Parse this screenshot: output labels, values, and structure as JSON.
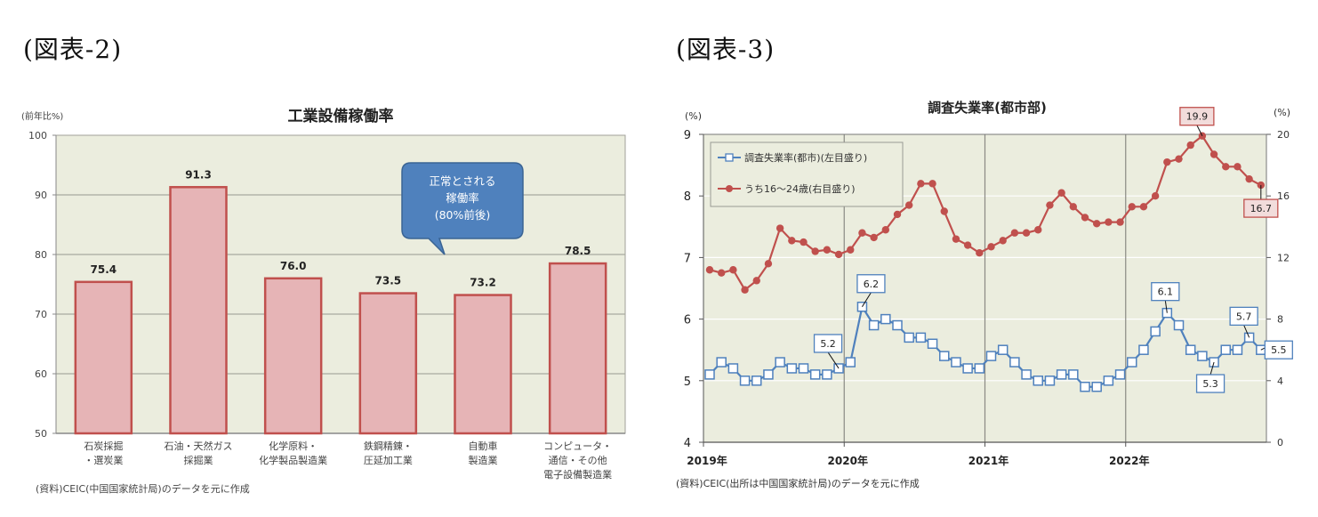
{
  "figures": {
    "fig2": {
      "label": "(図表-2)"
    },
    "fig3": {
      "label": "(図表-3)"
    }
  },
  "chart_data": [
    {
      "type": "bar",
      "title": "工業設備稼働率",
      "ylabel": "(前年比%)",
      "xlabel": "",
      "ylim": [
        50,
        100
      ],
      "yticks": [
        50,
        60,
        70,
        80,
        90,
        100
      ],
      "grid": true,
      "categories": [
        [
          "石炭採掘",
          "・選炭業"
        ],
        [
          "石油・天然ガス",
          "採掘業"
        ],
        [
          "化学原料・",
          "化学製品製造業"
        ],
        [
          "鉄鋼精錬・",
          "圧延加工業"
        ],
        [
          "自動車",
          "製造業"
        ],
        [
          "コンピュータ・",
          "通信・その他",
          "電子設備製造業"
        ]
      ],
      "values": [
        75.4,
        91.3,
        76.0,
        73.5,
        73.2,
        78.5
      ],
      "value_labels": [
        "75.4",
        "91.3",
        "76.0",
        "73.5",
        "73.2",
        "78.5"
      ],
      "annotation": {
        "lines": [
          "正常とされる",
          "稼働率",
          "(80%前後)"
        ],
        "points_to_y": 80
      },
      "source": "(資料)CEIC(中国国家統計局)のデータを元に作成",
      "colors": {
        "bar_fill": "#e6b4b6",
        "bar_border": "#c0504d",
        "plot_bg": "#ebedde",
        "callout": "#4f81bd"
      }
    },
    {
      "type": "line",
      "title": "調査失業率(都市部)",
      "ylabel_left": "(%)",
      "ylabel_right": "(%)",
      "ylim_left": [
        4,
        9
      ],
      "yticks_left": [
        4,
        5,
        6,
        7,
        8,
        9
      ],
      "ylim_right": [
        0,
        20
      ],
      "yticks_right": [
        0,
        4,
        8,
        12,
        16,
        20
      ],
      "x_tick_labels": [
        "2019年",
        "2020年",
        "2021年",
        "2022年"
      ],
      "x_start": "2019-01",
      "x_end": "2022-12",
      "grid": true,
      "legend_position": "upper-left",
      "series": [
        {
          "name": "調査失業率(都市)(左目盛り)",
          "axis": "left",
          "color": "#4f81bd",
          "marker": "square-open",
          "values": [
            5.1,
            5.3,
            5.2,
            5.0,
            5.0,
            5.1,
            5.3,
            5.2,
            5.2,
            5.1,
            5.1,
            5.2,
            5.3,
            6.2,
            5.9,
            6.0,
            5.9,
            5.7,
            5.7,
            5.6,
            5.4,
            5.3,
            5.2,
            5.2,
            5.4,
            5.5,
            5.3,
            5.1,
            5.0,
            5.0,
            5.1,
            5.1,
            4.9,
            4.9,
            5.0,
            5.1,
            5.3,
            5.5,
            5.8,
            6.1,
            5.9,
            5.5,
            5.4,
            5.3,
            5.5,
            5.5,
            5.7,
            5.5
          ],
          "data_labels": [
            {
              "index": 11,
              "text": "5.2",
              "dx": -12,
              "dy": -28
            },
            {
              "index": 13,
              "text": "6.2",
              "dx": 10,
              "dy": -26
            },
            {
              "index": 39,
              "text": "6.1",
              "dx": -2,
              "dy": -24
            },
            {
              "index": 43,
              "text": "5.3",
              "dx": -4,
              "dy": 24
            },
            {
              "index": 46,
              "text": "5.7",
              "dx": -6,
              "dy": -24
            },
            {
              "index": 47,
              "text": "5.5",
              "dx": 20,
              "dy": 0
            }
          ]
        },
        {
          "name": "うち16〜24歳(右目盛り)",
          "axis": "right",
          "color": "#c0504d",
          "marker": "circle-filled",
          "values": [
            11.2,
            11.0,
            11.2,
            9.9,
            10.5,
            11.6,
            13.9,
            13.1,
            13.0,
            12.4,
            12.5,
            12.2,
            12.5,
            13.6,
            13.3,
            13.8,
            14.8,
            15.4,
            16.8,
            16.8,
            15.0,
            13.2,
            12.8,
            12.3,
            12.7,
            13.1,
            13.6,
            13.6,
            13.8,
            15.4,
            16.2,
            15.3,
            14.6,
            14.2,
            14.3,
            14.3,
            15.3,
            15.3,
            16.0,
            18.2,
            18.4,
            19.3,
            19.9,
            18.7,
            17.9,
            17.9,
            17.1,
            16.7
          ],
          "data_labels": [
            {
              "index": 42,
              "text": "19.9",
              "dx": -6,
              "dy": -22
            },
            {
              "index": 47,
              "text": "16.7",
              "dx": 0,
              "dy": 26
            }
          ]
        }
      ],
      "source": "(資料)CEIC(出所は中国国家統計局)のデータを元に作成",
      "colors": {
        "plot_bg": "#ebedde"
      }
    }
  ]
}
